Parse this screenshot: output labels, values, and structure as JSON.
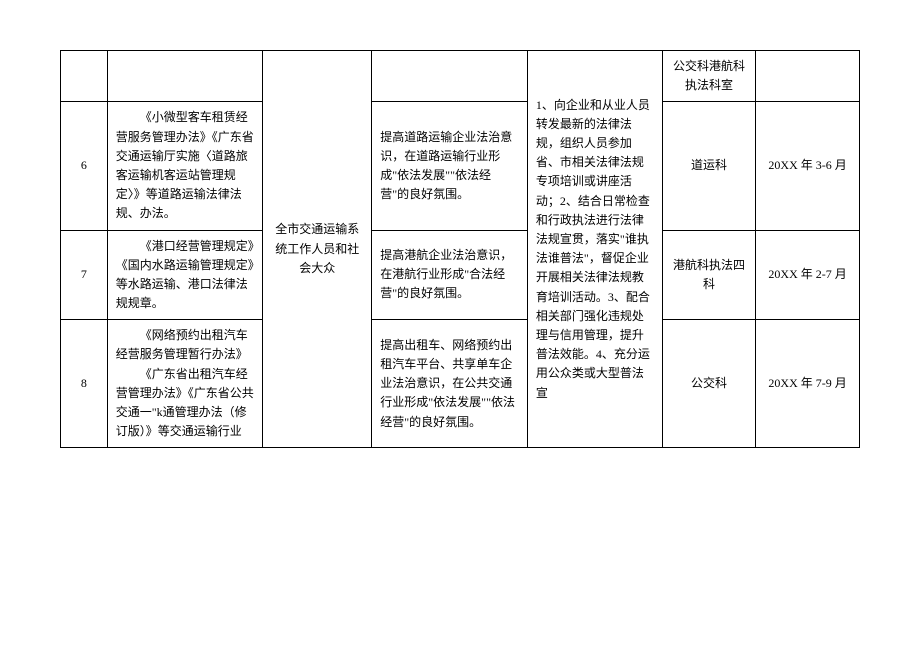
{
  "table": {
    "colors": {
      "border": "#000000",
      "text": "#000000",
      "background": "#ffffff"
    },
    "font_size": 12,
    "rows": [
      {
        "num": "",
        "content": "",
        "target": "",
        "purpose": "",
        "measure": "",
        "dept": "公交科港航科执法科室",
        "time": ""
      },
      {
        "num": "6",
        "content": "《小微型客车租赁经营服务管理办法》《广东省交通运输厅实施〈道路旅客运输机客运站管理规定〉》等道路运输法律法规、办法。",
        "target": "",
        "purpose": "提高道路运输企业法治意识，在道路运输行业形成\"依法发展\"\"依法经营\"的良好氛围。",
        "measure": "",
        "dept": "道运科",
        "time": "20XX 年 3-6 月"
      },
      {
        "num": "7",
        "content": "《港口经营管理规定》《国内水路运输管理规定》等水路运输、港口法律法规规章。",
        "target": "全市交通运输系统工作人员和社会大众",
        "purpose": "提高港航企业法治意识，在港航行业形成\"合法经营\"的良好氛围。",
        "measure": "1、向企业和从业人员转发最新的法律法规，组织人员参加省、市相关法律法规专项培训或讲座活动；2、结合日常检查和行政执法进行法律法规宣贯，落实\"谁执法谁普法\"，督促企业开展相关法律法规教育培训活动。3、配合相关部门强化违规处理与信用管理，提升普法效能。4、充分运用公众类或大型普法宣",
        "dept": "港航科执法四科",
        "time": "20XX 年 2-7 月"
      },
      {
        "num": "8",
        "content_p1": "《网络预约出租汽车经营服务管理暂行办法》",
        "content_p2": "《广东省出租汽车经营管理办法》《广东省公共交通一\"k通管理办法（修订版）》等交通运输行业",
        "target": "",
        "purpose": "提高出租车、网络预约出租汽车平台、共享单车企业法治意识，在公共交通行业形成\"依法发展\"\"依法经营\"的良好氛围。",
        "measure": "",
        "dept": "公交科",
        "time": "20XX 年 7-9 月"
      }
    ]
  }
}
